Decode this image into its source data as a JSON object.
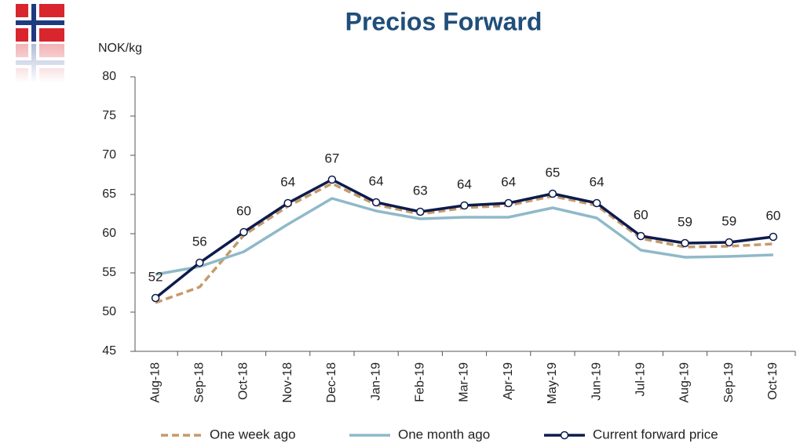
{
  "chart_data": {
    "type": "line",
    "title": "Precios Forward",
    "y_label": "NOK/kg",
    "categories": [
      "Aug-18",
      "Sep-18",
      "Oct-18",
      "Nov-18",
      "Dec-18",
      "Jan-19",
      "Feb-19",
      "Mar-19",
      "Apr-19",
      "May-19",
      "Jun-19",
      "Jul-19",
      "Aug-19",
      "Sep-19",
      "Oct-19"
    ],
    "series": [
      {
        "name": "One week ago",
        "color": "#c49a6c",
        "dashed": true,
        "values": [
          51.2,
          53.2,
          59.8,
          63.5,
          66.4,
          63.7,
          62.5,
          63.3,
          63.6,
          64.8,
          63.6,
          59.4,
          58.3,
          58.4,
          58.7
        ]
      },
      {
        "name": "One month ago",
        "color": "#8fb9c9",
        "values": [
          54.8,
          55.8,
          57.7,
          61.2,
          64.5,
          62.9,
          61.9,
          62.1,
          62.1,
          63.3,
          62.0,
          57.9,
          57.0,
          57.1,
          57.3
        ]
      },
      {
        "name": "Current forward price",
        "color": "#0d1b4c",
        "markers": true,
        "values": [
          51.8,
          56.3,
          60.2,
          63.9,
          66.9,
          64.0,
          62.8,
          63.6,
          63.9,
          65.1,
          63.9,
          59.7,
          58.8,
          58.9,
          59.6
        ],
        "value_labels": [
          "52",
          "56",
          "60",
          "64",
          "67",
          "64",
          "63",
          "64",
          "64",
          "65",
          "64",
          "60",
          "59",
          "59",
          "60"
        ]
      }
    ],
    "ylim": [
      45,
      80
    ],
    "yticks": [
      45,
      50,
      55,
      60,
      65,
      70,
      75,
      80
    ]
  }
}
